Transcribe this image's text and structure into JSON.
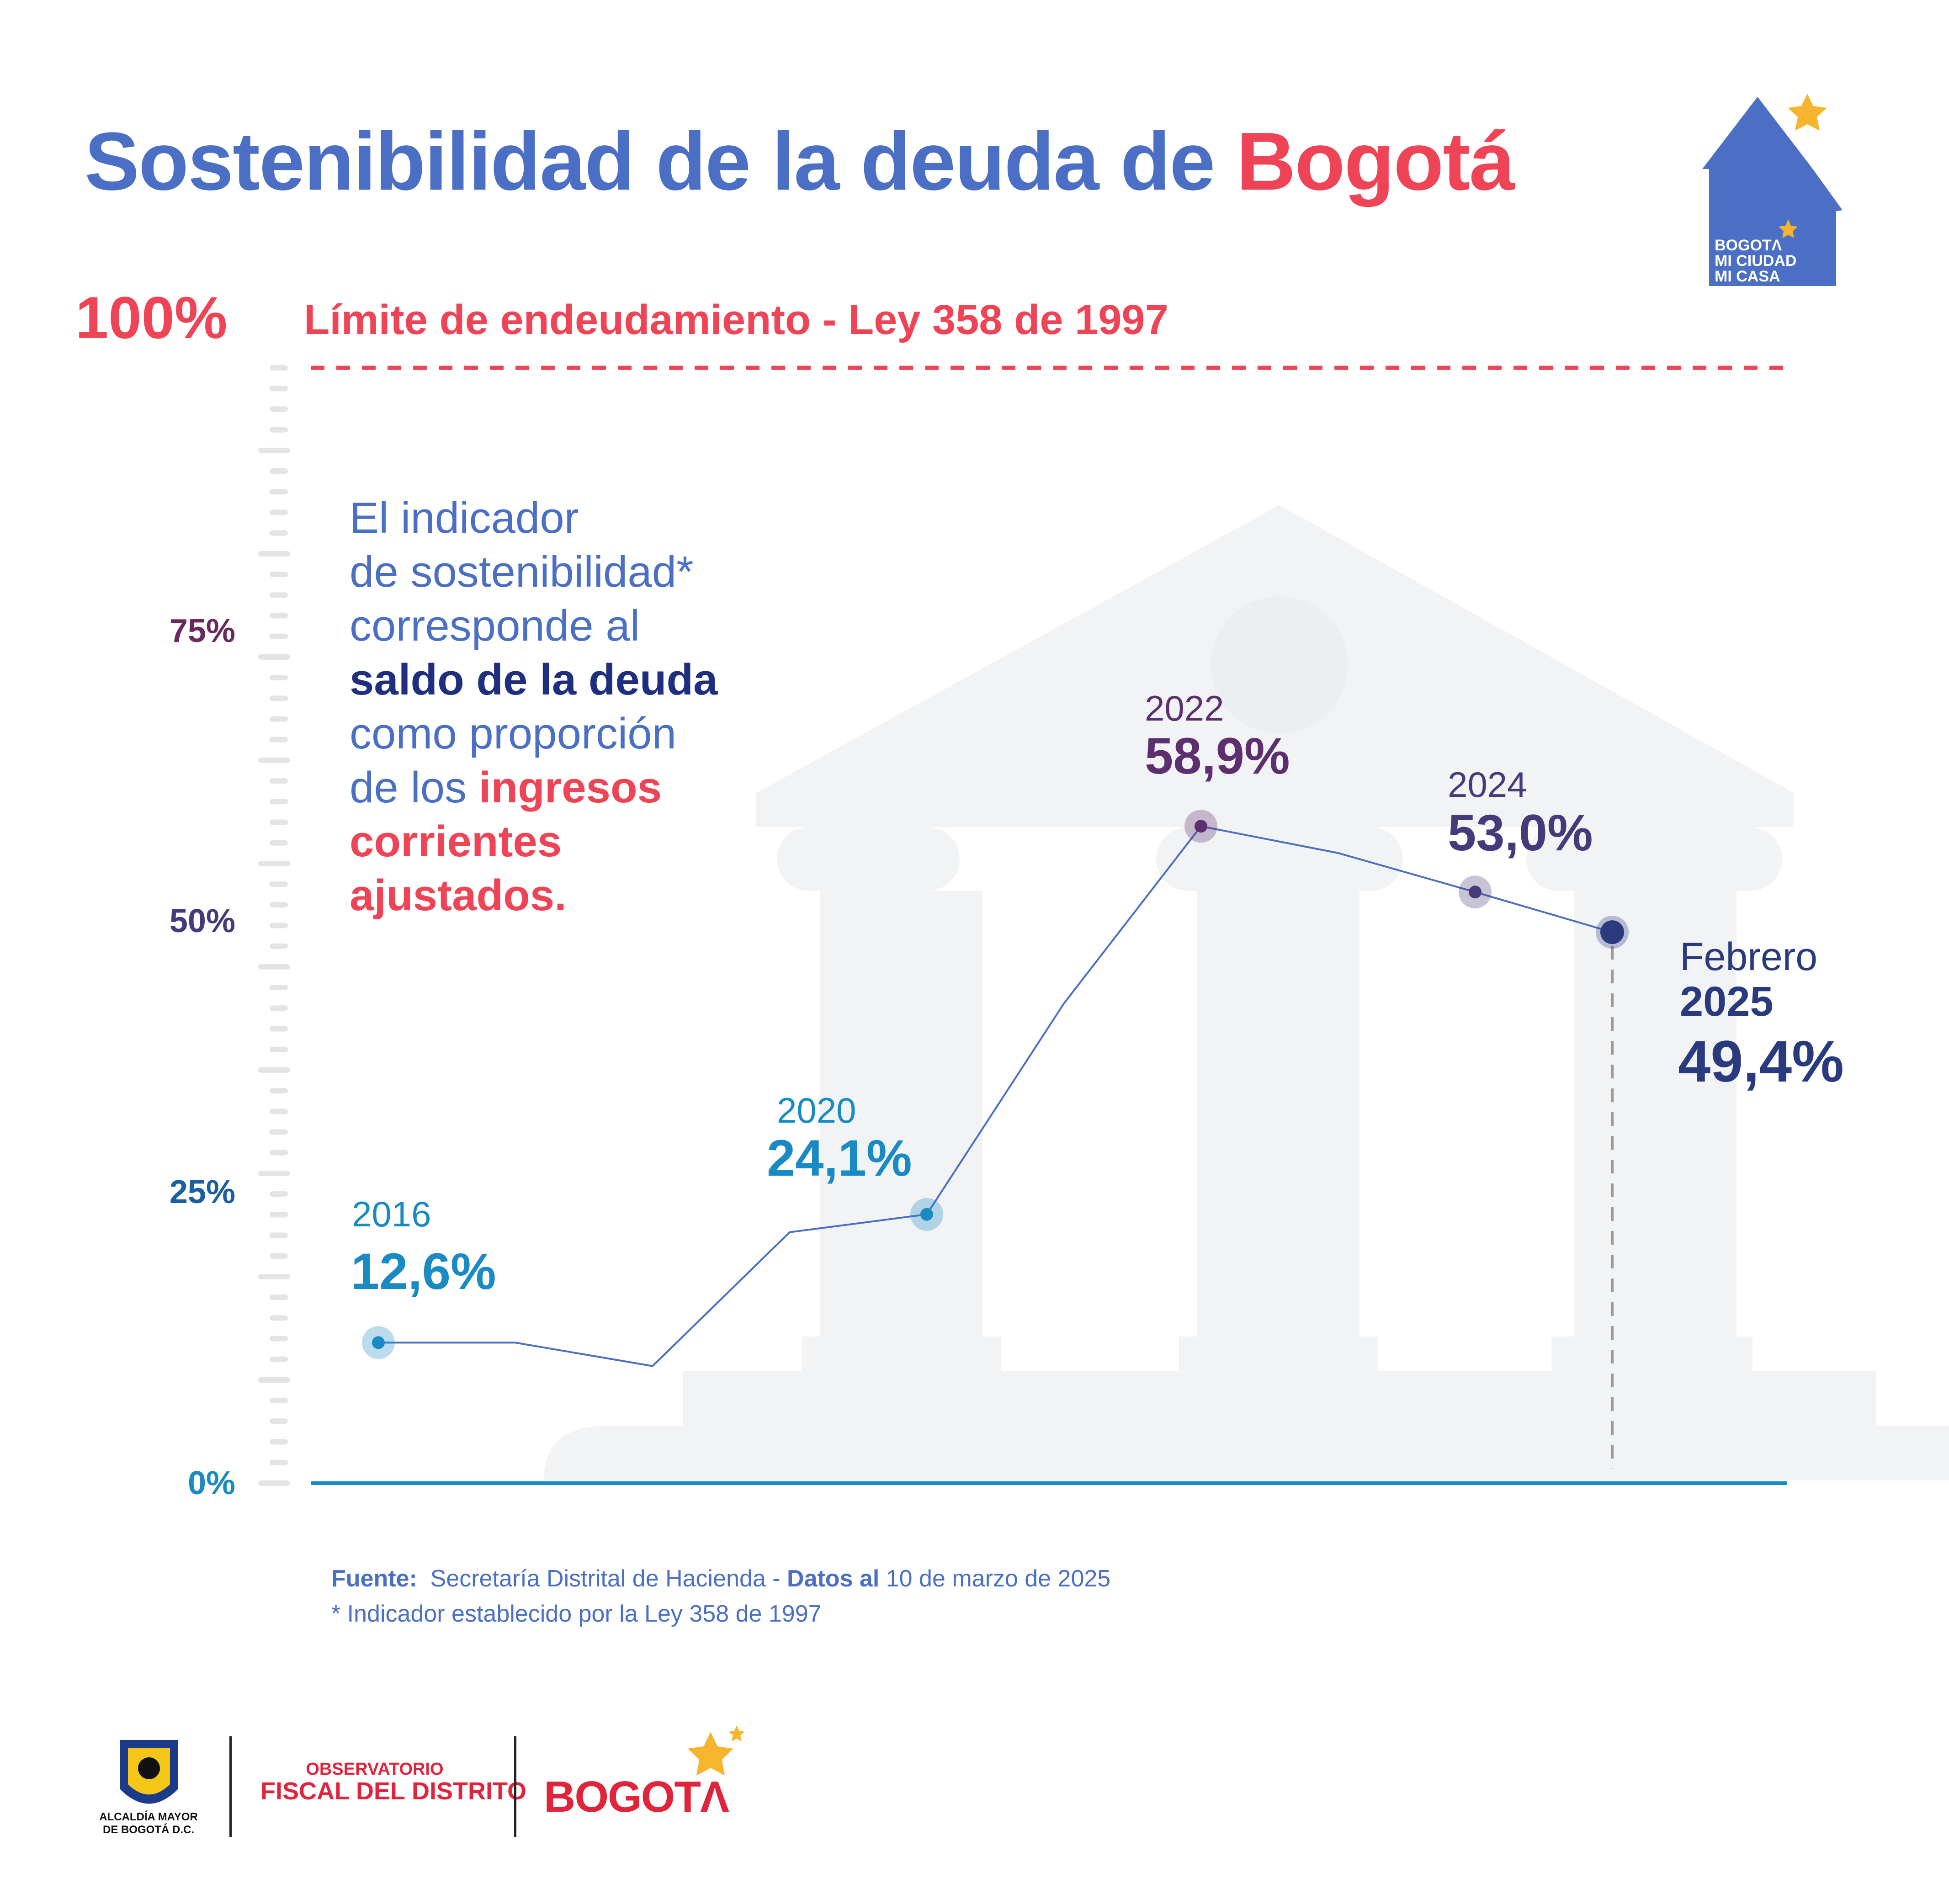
{
  "title": {
    "main": "Sostenibilidad de la deuda de ",
    "accent": "Bogotá"
  },
  "limit": {
    "value_label": "100%",
    "label": "Límite de endeudamiento - Ley 358 de 1997"
  },
  "description": {
    "line1": "El indicador",
    "line2": "de sostenibilidad*",
    "line3": "corresponde al",
    "line4_bold": "saldo de la deuda",
    "line5": "como proporción",
    "line6_normal": "de los ",
    "line6_red": "ingresos",
    "line7_red": "corrientes",
    "line8_red": "ajustados."
  },
  "chart_data": {
    "type": "line",
    "title": "Sostenibilidad de la deuda de Bogotá",
    "ylim": [
      0,
      100
    ],
    "yticks": [
      "0%",
      "25%",
      "50%",
      "75%"
    ],
    "grid": false,
    "reference_line": {
      "value": 100,
      "label": "Límite de endeudamiento - Ley 358 de 1997"
    },
    "series": [
      {
        "values": [
          {
            "x": "2016",
            "y": 12.6
          },
          {
            "x": "2017",
            "y": 12.6
          },
          {
            "x": "2018",
            "y": 10.5
          },
          {
            "x": "2019",
            "y": 22.5
          },
          {
            "x": "2020",
            "y": 24.1
          },
          {
            "x": "2021",
            "y": 43.0
          },
          {
            "x": "2022",
            "y": 58.9
          },
          {
            "x": "2023",
            "y": 56.5
          },
          {
            "x": "2024",
            "y": 53.0
          },
          {
            "x": "Febrero 2025",
            "y": 49.4
          }
        ]
      }
    ],
    "annotations": [
      {
        "x": "2016",
        "year_label": "2016",
        "value_label": "12,6%",
        "color": "#1a8ac4"
      },
      {
        "x": "2020",
        "year_label": "2020",
        "value_label": "24,1%",
        "color": "#1a8ac4"
      },
      {
        "x": "2022",
        "year_label": "2022",
        "value_label": "58,9%",
        "color": "#5e2f6e"
      },
      {
        "x": "2024",
        "year_label": "2024",
        "value_label": "53,0%",
        "color": "#453b7a"
      },
      {
        "x": "Febrero 2025",
        "year_label": "Febrero",
        "year_label_2": "2025",
        "value_label": "49,4%",
        "color": "#2a3a7e"
      }
    ]
  },
  "source": {
    "label": "Fuente:",
    "text": "Secretaría Distrital de Hacienda - ",
    "date_label": "Datos al",
    "date": "10 de marzo de 2025",
    "note": "* Indicador establecido por la Ley 358 de 1997"
  },
  "logos": {
    "house": {
      "line1": "BOGOTΛ",
      "line2": "MI CIUDAD",
      "line3": "MI CASA"
    },
    "alcaldia": {
      "line1": "ALCALDÍA MAYOR",
      "line2": "DE BOGOTÁ D.C."
    },
    "observatorio": {
      "line1": "OBSERVATORIO",
      "line2": "FISCAL DEL DISTRITO"
    },
    "bogota": "BOGOTΛ"
  },
  "colors": {
    "title_blue": "#4a6fc4",
    "accent_red": "#ef4456",
    "line_blue": "#4a6fc4",
    "axis_blue": "#1a8ac4",
    "purple": "#5e2f6e",
    "navy": "#2a3a7e",
    "star": "#f5b52e"
  }
}
